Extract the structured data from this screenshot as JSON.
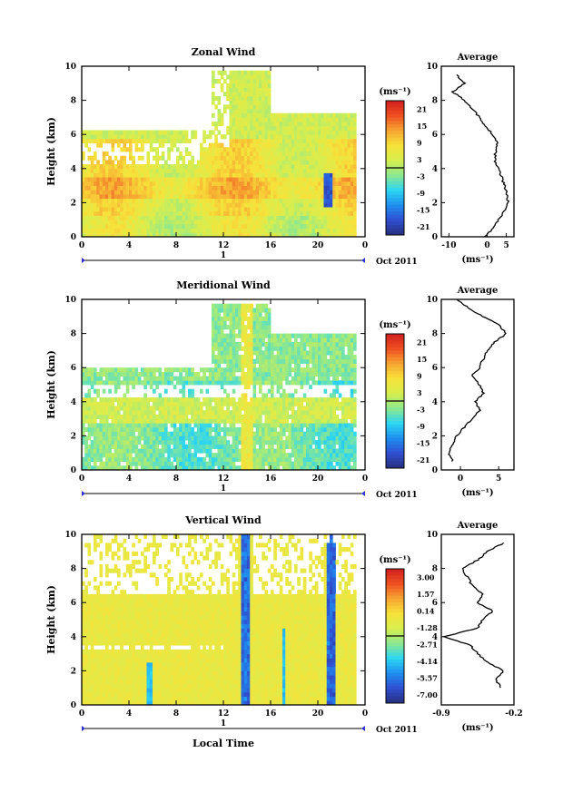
{
  "page": {
    "xaxis_title": "Local Time"
  },
  "chart_data": [
    {
      "type": "heatmap",
      "title": "Zonal Wind",
      "ylabel": "Height (km)",
      "ylim": [
        0,
        10
      ],
      "yticks": [
        "0",
        "2",
        "4",
        "6",
        "8",
        "10"
      ],
      "xlim": [
        0,
        24
      ],
      "xticks": [
        "0",
        "4",
        "8",
        "12",
        "16",
        "20",
        "0"
      ],
      "date_marker": "1",
      "date_label": "Oct 2011",
      "colorbar": {
        "unit": "(ms⁻¹)",
        "ticks": [
          "21",
          "15",
          "9",
          "3",
          "-3",
          "-9",
          "-15",
          "-21"
        ]
      },
      "average_profile": {
        "title": "Average",
        "xlabel": "(ms⁻¹)",
        "xticks": [
          "-10",
          "0",
          "5"
        ],
        "xlim": [
          -12,
          7
        ],
        "yticks": [
          "0",
          "2",
          "4",
          "6",
          "8",
          "10"
        ],
        "height": [
          0.0,
          0.5,
          1.0,
          1.5,
          2.0,
          2.5,
          3.0,
          3.5,
          4.0,
          4.5,
          5.0,
          5.5,
          6.0,
          6.5,
          7.0,
          7.5,
          8.0,
          8.5,
          9.0,
          9.5
        ],
        "value": [
          -0.5,
          1.5,
          3.0,
          4.5,
          5.5,
          5.2,
          4.5,
          3.8,
          2.8,
          2.0,
          2.2,
          2.5,
          1.5,
          -0.5,
          -2.0,
          -4.0,
          -6.0,
          -9.0,
          -6.0,
          -8.0
        ]
      }
    },
    {
      "type": "heatmap",
      "title": "Meridional Wind",
      "ylabel": "Height (km)",
      "ylim": [
        0,
        10
      ],
      "yticks": [
        "0",
        "2",
        "4",
        "6",
        "8",
        "10"
      ],
      "xlim": [
        0,
        24
      ],
      "xticks": [
        "0",
        "4",
        "8",
        "12",
        "16",
        "20",
        "0"
      ],
      "date_marker": "1",
      "date_label": "Oct 2011",
      "colorbar": {
        "unit": "(ms⁻¹)",
        "ticks": [
          "21",
          "15",
          "9",
          "3",
          "-3",
          "-9",
          "-15",
          "-21"
        ]
      },
      "average_profile": {
        "title": "Average",
        "xlabel": "(ms⁻¹)",
        "xticks": [
          "0",
          "5"
        ],
        "xlim": [
          -2.5,
          7
        ],
        "yticks": [
          "0",
          "2",
          "4",
          "6",
          "8",
          "10"
        ],
        "height": [
          0.5,
          1.0,
          1.5,
          2.0,
          2.5,
          3.0,
          3.5,
          4.0,
          4.5,
          5.0,
          5.5,
          6.0,
          6.5,
          7.0,
          7.5,
          8.0,
          8.5,
          9.0,
          9.5,
          10.0
        ],
        "value": [
          -1.0,
          -1.5,
          -1.0,
          -0.5,
          0.5,
          1.5,
          2.5,
          2.0,
          3.0,
          2.5,
          1.5,
          2.5,
          3.0,
          3.5,
          4.5,
          6.0,
          5.0,
          3.0,
          1.0,
          -0.5
        ]
      }
    },
    {
      "type": "heatmap",
      "title": "Vertical Wind",
      "ylabel": "Height (km)",
      "ylim": [
        0,
        10
      ],
      "yticks": [
        "0",
        "2",
        "4",
        "6",
        "8",
        "10"
      ],
      "xlim": [
        0,
        24
      ],
      "xticks": [
        "0",
        "4",
        "8",
        "12",
        "16",
        "20",
        "0"
      ],
      "date_marker": "1",
      "date_label": "Oct 2011",
      "colorbar": {
        "unit": "(ms⁻¹)",
        "ticks": [
          "3.00",
          "1.57",
          "0.14",
          "-1.28",
          "-2.71",
          "-4.14",
          "-5.57",
          "-7.00"
        ]
      },
      "average_profile": {
        "title": "Average",
        "xlabel": "(ms⁻¹)",
        "xticks": [
          "-0.9",
          "-0.2"
        ],
        "xlim": [
          -0.9,
          -0.2
        ],
        "yticks": [
          "4",
          "6",
          "8",
          "10"
        ],
        "height": [
          1.0,
          1.5,
          2.0,
          2.5,
          3.0,
          3.5,
          4.0,
          4.5,
          5.0,
          5.5,
          6.0,
          6.5,
          7.0,
          7.5,
          8.0,
          8.5,
          9.0,
          9.5
        ],
        "value": [
          -0.32,
          -0.38,
          -0.3,
          -0.45,
          -0.55,
          -0.62,
          -0.88,
          -0.55,
          -0.5,
          -0.4,
          -0.55,
          -0.5,
          -0.6,
          -0.65,
          -0.7,
          -0.55,
          -0.45,
          -0.3
        ]
      }
    }
  ]
}
